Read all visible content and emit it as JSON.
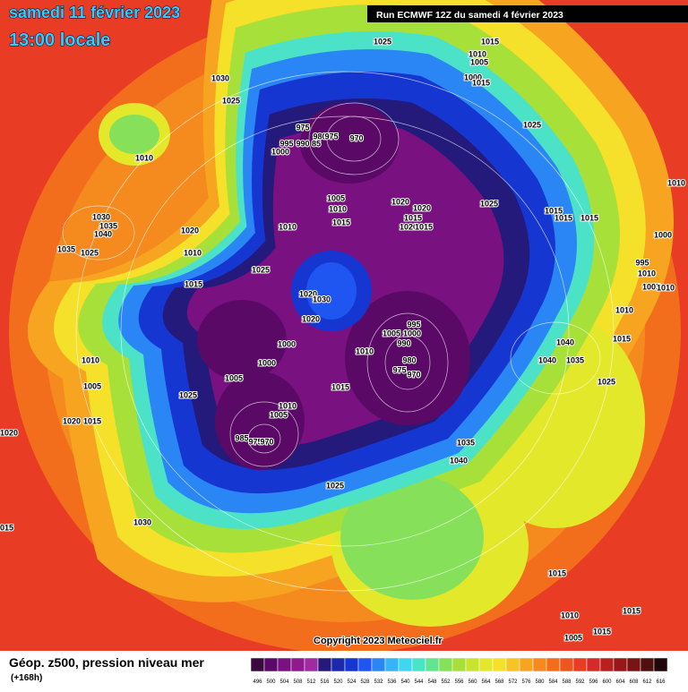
{
  "header": {
    "date": "samedi 11 février 2023",
    "time": "13:00 locale",
    "run": "Run ECMWF 12Z du samedi 4 février 2023"
  },
  "map": {
    "isobar_labels": [
      "1025",
      "1015",
      "1010",
      "1005",
      "1000",
      "1015",
      "1030",
      "1025",
      "975",
      "980",
      "975",
      "970",
      "995",
      "990",
      "85",
      "1000",
      "1010",
      "1025",
      "1005",
      "1010",
      "1020",
      "1020",
      "1015",
      "1020",
      "1015",
      "1015",
      "1025",
      "1015",
      "1015",
      "1015",
      "1010",
      "1030",
      "1035",
      "1040",
      "1035",
      "1025",
      "1020",
      "1010",
      "1015",
      "1025",
      "1000",
      "995",
      "1010",
      "1005",
      "1010",
      "1020",
      "1030",
      "1020",
      "995",
      "1005",
      "1000",
      "990",
      "1000",
      "1010",
      "980",
      "975",
      "970",
      "1000",
      "1005",
      "1040",
      "1040",
      "1035",
      "1010",
      "1015",
      "1025",
      "1015",
      "1025",
      "1010",
      "1005",
      "1010",
      "1005",
      "1020",
      "1015",
      "1020",
      "985",
      "975",
      "970",
      "1035",
      "1040",
      "1025",
      "1030",
      "1015",
      "1015",
      "1010",
      "1015",
      "1005",
      "1015",
      "1010"
    ],
    "copyright": "Copyright 2023 Meteociel.fr"
  },
  "footer": {
    "title": "Géop. z500, pression niveau mer",
    "lead": "(+168h)"
  },
  "scale": {
    "levels": [
      496,
      500,
      504,
      508,
      512,
      516,
      520,
      524,
      528,
      532,
      536,
      540,
      544,
      548,
      552,
      556,
      560,
      564,
      568,
      572,
      576,
      580,
      584,
      588,
      592,
      596,
      600,
      604,
      608,
      612,
      616
    ],
    "colors": [
      "#3a0a3e",
      "#5a0a66",
      "#7a1180",
      "#8e1a8e",
      "#a02aa0",
      "#231a7c",
      "#1a2aa8",
      "#1636d2",
      "#1f55f0",
      "#2a86f5",
      "#35b5f5",
      "#3dd8f0",
      "#4be2c8",
      "#63e490",
      "#86e05a",
      "#a8e03a",
      "#c8e42c",
      "#e4e82a",
      "#f5e02a",
      "#f7c425",
      "#f7a520",
      "#f58a1e",
      "#f26e1d",
      "#ee561f",
      "#e83c25",
      "#d42a28",
      "#b82020",
      "#98181a",
      "#781414",
      "#501010",
      "#200808"
    ]
  }
}
